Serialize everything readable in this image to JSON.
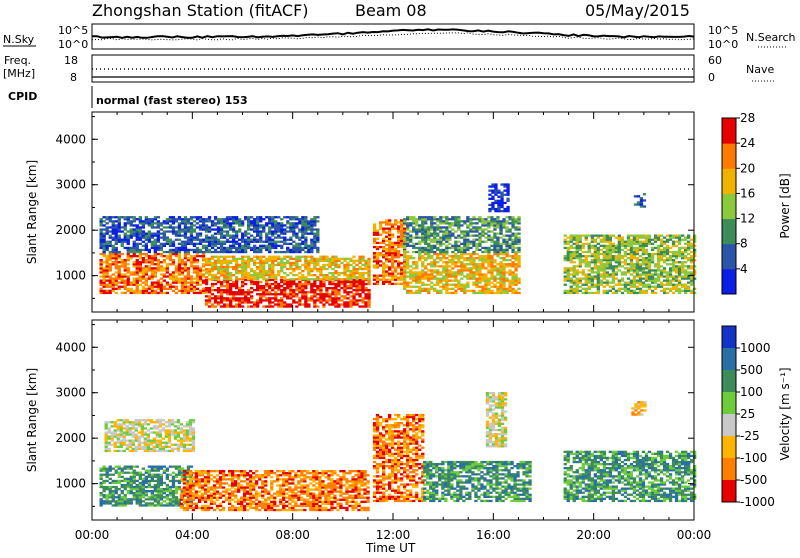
{
  "header": {
    "title": "Zhongshan Station (fitACF)",
    "beam": "Beam 08",
    "date": "05/May/2015"
  },
  "noise_panel": {
    "left_label": "N.Sky",
    "right_label": "N.Search",
    "left_ticks": [
      "10^5",
      "10^0"
    ],
    "right_ticks": [
      "10^5",
      "10^0"
    ]
  },
  "freq_panel": {
    "left_label": "Freq.",
    "left_unit": "[MHz]",
    "right_label": "Nave",
    "left_ticks": [
      "18",
      "8"
    ],
    "right_ticks": [
      "60",
      "0"
    ]
  },
  "cpid": {
    "label": "CPID",
    "mode": "normal (fast stereo) 153"
  },
  "chart_data": [
    {
      "type": "heatmap",
      "quantity": "Power",
      "ylabel": "Slant Range [km]",
      "xlabel": "Time UT",
      "ylim": [
        200,
        4600
      ],
      "yticks": [
        1000,
        2000,
        3000,
        4000
      ],
      "xticks": [
        "00:00",
        "04:00",
        "08:00",
        "12:00",
        "16:00",
        "20:00",
        "00:00"
      ],
      "colorbar": {
        "label": "Power [dB]",
        "ticks": [
          "4",
          "8",
          "12",
          "16",
          "20",
          "24",
          "28"
        ],
        "colors": [
          "#0a1ee6",
          "#2b55a8",
          "#3c8c5a",
          "#8cc83c",
          "#f0b400",
          "#ff7a00",
          "#e60000"
        ]
      },
      "regions": [
        {
          "t": [
            0.3,
            4.5
          ],
          "r": [
            600,
            1500
          ],
          "level": 5
        },
        {
          "t": [
            4.5,
            11.0
          ],
          "r": [
            300,
            900
          ],
          "level": 6
        },
        {
          "t": [
            4.5,
            11.0
          ],
          "r": [
            900,
            1400
          ],
          "level": 4
        },
        {
          "t": [
            0.3,
            9.0
          ],
          "r": [
            1500,
            2300
          ],
          "level": 1
        },
        {
          "t": [
            11.2,
            12.4
          ],
          "r": [
            800,
            2200
          ],
          "level": 5
        },
        {
          "t": [
            12.4,
            17.0
          ],
          "r": [
            600,
            1500
          ],
          "level": 4
        },
        {
          "t": [
            12.4,
            17.0
          ],
          "r": [
            1500,
            2300
          ],
          "level": 2
        },
        {
          "t": [
            15.8,
            16.6
          ],
          "r": [
            2400,
            3000
          ],
          "level": 0
        },
        {
          "t": [
            18.8,
            24.0
          ],
          "r": [
            600,
            1900
          ],
          "level": 3
        },
        {
          "t": [
            21.6,
            22.0
          ],
          "r": [
            2500,
            2800
          ],
          "level": 1
        }
      ]
    },
    {
      "type": "heatmap",
      "quantity": "Velocity",
      "ylabel": "Slant Range [km]",
      "xlabel": "Time UT",
      "ylim": [
        200,
        4600
      ],
      "yticks": [
        1000,
        2000,
        3000,
        4000
      ],
      "xticks": [
        "00:00",
        "04:00",
        "08:00",
        "12:00",
        "16:00",
        "20:00",
        "00:00"
      ],
      "colorbar": {
        "label": "Velocity [m s⁻¹]",
        "ticks": [
          "1000",
          "500",
          "100",
          "25",
          "-25",
          "-100",
          "-500",
          "-1000"
        ],
        "colors": [
          "#1431c8",
          "#2a6ea6",
          "#3c8c5a",
          "#6ccc3c",
          "#c8c8c8",
          "#ffb400",
          "#ff8000",
          "#e60000"
        ]
      },
      "regions": [
        {
          "t": [
            0.3,
            4.0
          ],
          "r": [
            500,
            1400
          ],
          "level": 2
        },
        {
          "t": [
            0.5,
            4.0
          ],
          "r": [
            1700,
            2400
          ],
          "level": 4
        },
        {
          "t": [
            3.5,
            11.0
          ],
          "r": [
            400,
            1300
          ],
          "level": 6
        },
        {
          "t": [
            11.2,
            13.2
          ],
          "r": [
            600,
            2500
          ],
          "level": 6
        },
        {
          "t": [
            13.2,
            17.5
          ],
          "r": [
            600,
            1500
          ],
          "level": 2
        },
        {
          "t": [
            15.7,
            16.5
          ],
          "r": [
            1800,
            3000
          ],
          "level": 4
        },
        {
          "t": [
            18.8,
            24.0
          ],
          "r": [
            600,
            1700
          ],
          "level": 2
        },
        {
          "t": [
            21.5,
            22.0
          ],
          "r": [
            2500,
            2800
          ],
          "level": 5
        }
      ]
    }
  ]
}
